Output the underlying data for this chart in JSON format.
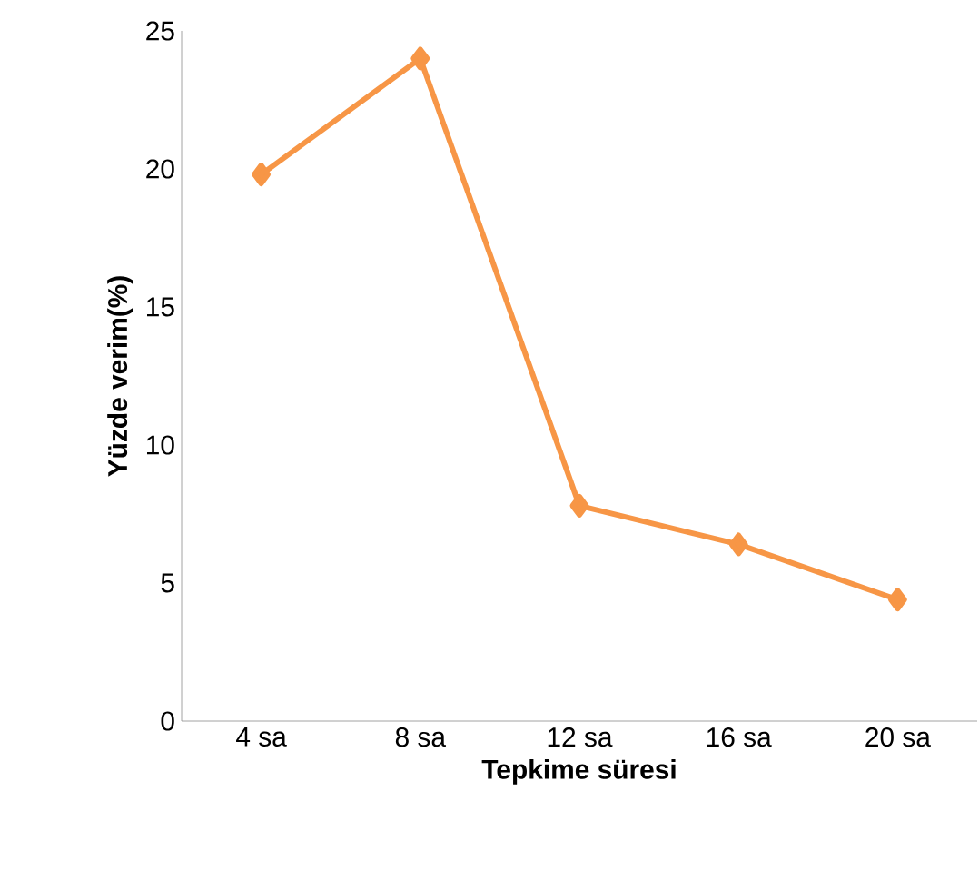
{
  "chart_data": {
    "type": "line",
    "xlabel": "Tepkime süresi",
    "ylabel": "Yüzde verim(%)",
    "categories": [
      "4 sa",
      "8 sa",
      "12 sa",
      "16 sa",
      "20 sa"
    ],
    "series": [
      {
        "color": "#f79646",
        "values": [
          19.8,
          24.0,
          7.8,
          6.4,
          4.4
        ]
      }
    ],
    "ylim": [
      0,
      25
    ],
    "yticks": [
      0,
      5,
      10,
      15,
      20,
      25
    ],
    "marker": "diamond",
    "line_style": "solid",
    "grid": false
  }
}
